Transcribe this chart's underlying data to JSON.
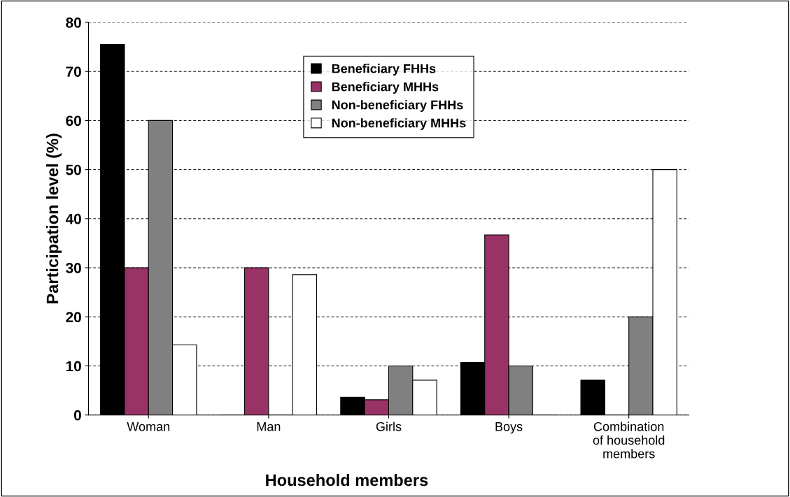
{
  "chart_data": {
    "type": "bar",
    "xlabel": "Household members",
    "ylabel": "Participation level (%)",
    "categories": [
      "Woman",
      "Man",
      "Girls",
      "Boys",
      "Combination\nof household\nmembers"
    ],
    "series": [
      {
        "name": "Beneficiary FHHs",
        "color": "#000000",
        "values": [
          75.5,
          0,
          3.6,
          10.7,
          7.1
        ]
      },
      {
        "name": "Beneficiary MHHs",
        "color": "#993366",
        "values": [
          30,
          30,
          3.1,
          36.7,
          0
        ]
      },
      {
        "name": "Non-beneficiary FHHs",
        "color": "#808080",
        "values": [
          60,
          0,
          10,
          10,
          20
        ]
      },
      {
        "name": "Non-beneficiary MHHs",
        "color": "#ffffff",
        "values": [
          14.3,
          28.6,
          7.1,
          0,
          50
        ]
      }
    ],
    "ylim": [
      0,
      80
    ],
    "yticks": [
      0,
      10,
      20,
      30,
      40,
      50,
      60,
      70,
      80
    ],
    "grid": "y",
    "legend": "top"
  }
}
